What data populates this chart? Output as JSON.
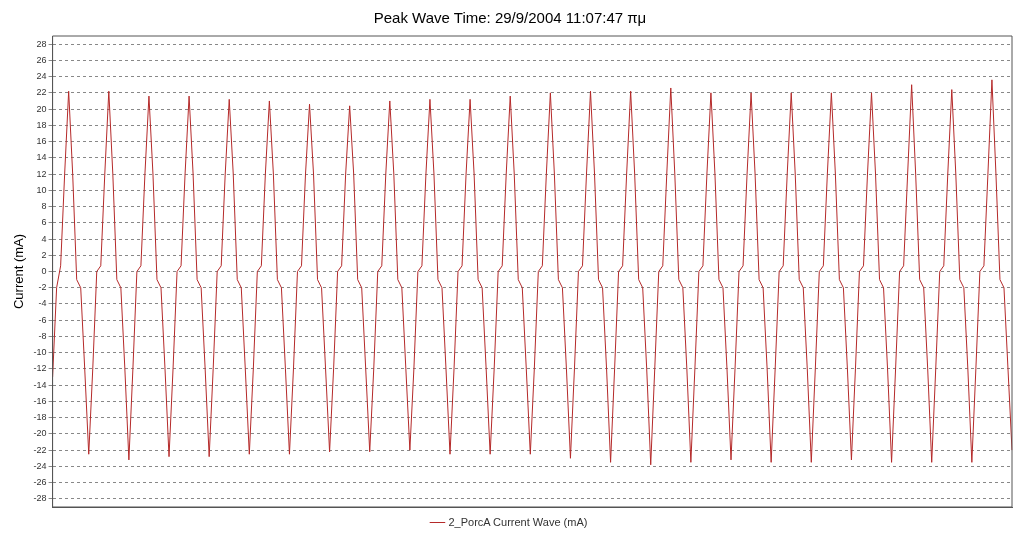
{
  "chart_data": {
    "type": "line",
    "title": "Peak Wave Time: 29/9/2004 11:07:47 πμ",
    "ylabel": "Current (mA)",
    "categories": [
      null,
      null,
      null,
      null,
      null,
      null,
      null,
      null,
      null,
      null,
      null,
      null,
      null,
      null,
      null,
      null,
      null,
      null,
      null,
      null,
      null,
      null,
      null,
      null,
      null,
      null,
      null,
      null,
      null,
      null,
      null,
      null,
      null,
      null,
      null,
      null,
      null,
      null,
      null,
      null,
      null,
      null,
      null,
      null,
      null,
      null,
      null,
      null,
      null,
      null,
      null,
      null,
      null,
      null,
      null,
      null,
      null,
      null,
      null,
      null,
      null,
      null,
      null,
      null,
      null,
      null,
      null,
      null,
      null,
      null,
      null,
      null,
      null,
      null,
      null,
      null,
      null,
      null,
      null,
      null,
      null,
      null,
      null,
      null,
      null,
      null,
      null,
      null,
      null,
      null,
      null,
      null,
      null,
      null,
      null,
      null,
      null,
      null,
      null,
      null,
      null,
      null,
      null,
      null,
      null,
      null,
      null,
      null,
      null,
      null,
      null,
      null,
      null,
      null,
      null,
      null,
      null,
      null,
      null,
      null,
      null,
      null,
      null,
      null,
      null,
      null,
      null,
      null,
      null,
      null,
      null,
      null,
      null,
      null,
      null,
      null,
      null,
      null,
      null,
      null,
      null,
      null,
      null,
      null,
      null,
      null,
      null,
      null,
      null,
      null,
      null,
      null,
      null,
      null,
      null,
      null,
      null,
      null,
      null,
      null,
      null,
      null,
      null,
      null,
      null,
      null,
      null,
      null,
      null,
      null,
      null,
      null,
      null,
      null,
      null,
      null,
      null,
      null,
      null,
      null,
      null,
      null,
      null,
      null,
      null,
      null,
      null,
      null,
      null,
      null,
      null,
      null,
      null,
      null,
      null,
      null,
      null,
      null,
      null,
      null,
      null,
      null,
      null,
      null,
      null,
      null,
      null,
      null,
      null,
      null,
      null,
      null,
      null,
      null,
      null,
      null,
      null,
      null,
      null,
      null,
      null,
      null,
      null,
      null,
      null,
      null,
      null,
      null,
      null,
      null,
      null,
      null,
      null,
      null,
      null,
      null,
      null,
      null,
      null,
      null
    ],
    "series": [
      {
        "name": "2_PorcA Current Wave (mA)",
        "color": "#b52a2a",
        "values": [
          -13,
          -2,
          0.7,
          12,
          22.2,
          12,
          -1,
          -2,
          -12,
          -22.5,
          -12,
          0,
          0.7,
          12,
          22.2,
          12,
          -1,
          -2,
          -12,
          -23.2,
          -12,
          0,
          0.7,
          12,
          21.6,
          12,
          -1,
          -2,
          -12,
          -22.8,
          -12,
          0,
          0.7,
          12,
          21.6,
          12,
          -1,
          -2,
          -12,
          -22.8,
          -12,
          0,
          0.7,
          12,
          21.2,
          12,
          -1,
          -2,
          -12,
          -22.5,
          -12,
          0,
          0.7,
          12,
          21,
          12,
          -1,
          -2,
          -12,
          -22.5,
          -12,
          0,
          0.7,
          12,
          20.6,
          12,
          -1,
          -2,
          -12,
          -22.2,
          -12,
          0,
          0.7,
          12,
          20.4,
          12,
          -1,
          -2,
          -12,
          -22.2,
          -12,
          0,
          0.7,
          12,
          21,
          12,
          -1,
          -2,
          -12,
          -22,
          -12,
          0,
          0.7,
          12,
          21.2,
          12,
          -1,
          -2,
          -12,
          -22.5,
          -12,
          0,
          0.7,
          12,
          21.2,
          12,
          -1,
          -2,
          -12,
          -22.5,
          -12,
          0,
          0.7,
          12,
          21.6,
          12,
          -1,
          -2,
          -12,
          -22.5,
          -12,
          0,
          0.7,
          12,
          22,
          12,
          -1,
          -2,
          -12,
          -23,
          -12,
          0,
          0.7,
          12,
          22.2,
          12,
          -1,
          -2,
          -12,
          -23.5,
          -12,
          0,
          0.7,
          12,
          22.2,
          12,
          -1,
          -2,
          -12,
          -23.8,
          -12,
          0,
          0.7,
          12,
          22.6,
          12,
          -1,
          -2,
          -12,
          -23.5,
          -12,
          0,
          0.7,
          12,
          22,
          12,
          -1,
          -2,
          -12,
          -23.2,
          -12,
          0,
          0.7,
          12,
          22,
          12,
          -1,
          -2,
          -12,
          -23.5,
          -12,
          0,
          0.7,
          12,
          22,
          12,
          -1,
          -2,
          -12,
          -23.5,
          -12,
          0,
          0.7,
          12,
          22,
          12,
          -1,
          -2,
          -12,
          -23.2,
          -12,
          0,
          0.7,
          12,
          22,
          12,
          -1,
          -2,
          -12,
          -23.5,
          -12,
          0,
          0.7,
          12,
          23,
          12,
          -1,
          -2,
          -12,
          -23.5,
          -12,
          0,
          0.7,
          12,
          22.4,
          12,
          -1,
          -2,
          -12,
          -23.5,
          -12,
          0,
          0.7,
          12,
          23.6,
          12,
          -1,
          -2,
          -12,
          -22
        ]
      }
    ],
    "ylim": [
      -29,
      29
    ],
    "yticks": [
      -28,
      -26,
      -24,
      -22,
      -20,
      -18,
      -16,
      -14,
      -12,
      -10,
      -8,
      -6,
      -4,
      -2,
      0,
      2,
      4,
      6,
      8,
      10,
      12,
      14,
      16,
      18,
      20,
      22,
      24,
      26,
      28
    ],
    "grid": "y",
    "legend": "bottom",
    "tick_labels": "y",
    "marker": "none",
    "line_style": "solid"
  }
}
